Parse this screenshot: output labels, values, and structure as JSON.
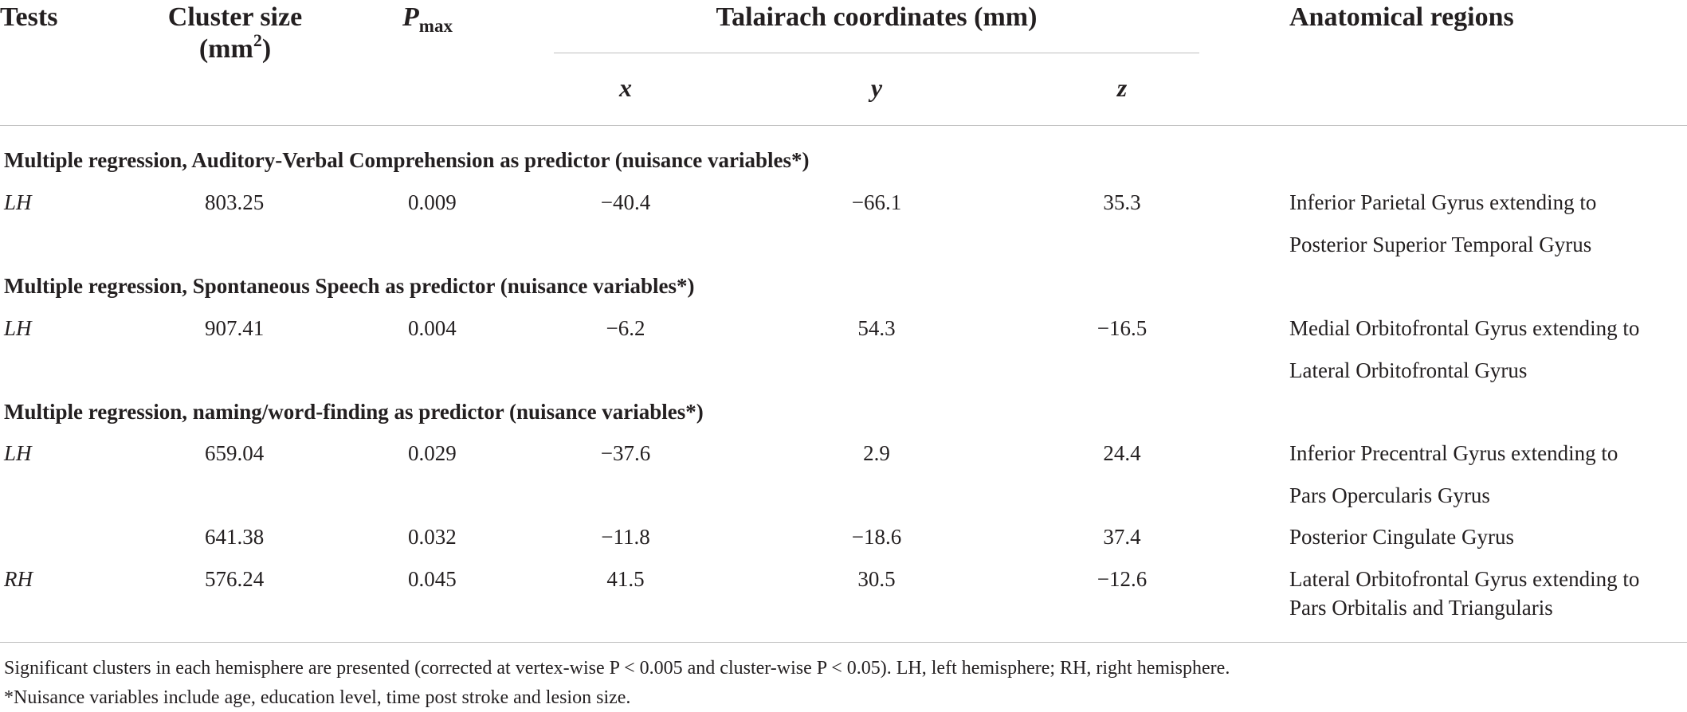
{
  "headers": {
    "tests": "Tests",
    "cluster_line1": "Cluster size",
    "cluster_unit_pre": "(mm",
    "cluster_unit_sup": "2",
    "cluster_unit_post": ")",
    "pmax_main": "P",
    "pmax_sub": "max",
    "talairach": "Talairach coordinates (mm)",
    "x": "x",
    "y": "y",
    "z": "z",
    "regions": "Anatomical regions"
  },
  "sections": [
    {
      "title": "Multiple regression, Auditory-Verbal Comprehension as predictor (nuisance variables*)",
      "rows": [
        {
          "test": "LH",
          "size": "803.25",
          "p": "0.009",
          "x": "−40.4",
          "y": "−66.1",
          "z": "35.3",
          "region1": "Inferior Parietal Gyrus extending to",
          "region2": "Posterior Superior Temporal Gyrus"
        }
      ]
    },
    {
      "title": "Multiple regression, Spontaneous Speech as predictor (nuisance variables*)",
      "rows": [
        {
          "test": "LH",
          "size": "907.41",
          "p": "0.004",
          "x": "−6.2",
          "y": "54.3",
          "z": "−16.5",
          "region1": "Medial Orbitofrontal Gyrus extending to",
          "region2": "Lateral Orbitofrontal Gyrus"
        }
      ]
    },
    {
      "title": "Multiple regression, naming/word-finding as predictor (nuisance variables*)",
      "rows": [
        {
          "test": "LH",
          "size": "659.04",
          "p": "0.029",
          "x": "−37.6",
          "y": "2.9",
          "z": "24.4",
          "region1": "Inferior Precentral Gyrus extending to",
          "region2": "Pars Opercularis Gyrus"
        },
        {
          "test": "",
          "size": "641.38",
          "p": "0.032",
          "x": "−11.8",
          "y": "−18.6",
          "z": "37.4",
          "region1": "Posterior Cingulate Gyrus",
          "region2": ""
        },
        {
          "test": "RH",
          "size": "576.24",
          "p": "0.045",
          "x": "41.5",
          "y": "30.5",
          "z": "−12.6",
          "region1": "Lateral Orbitofrontal Gyrus extending to",
          "region2": "Pars Orbitalis and Triangularis"
        }
      ]
    }
  ],
  "footnotes": {
    "line1": "Significant clusters in each hemisphere are presented (corrected at vertex-wise P < 0.005 and cluster-wise P < 0.05). LH, left hemisphere; RH, right hemisphere.",
    "line2": "*Nuisance variables include age, education level, time post stroke and lesion size."
  }
}
